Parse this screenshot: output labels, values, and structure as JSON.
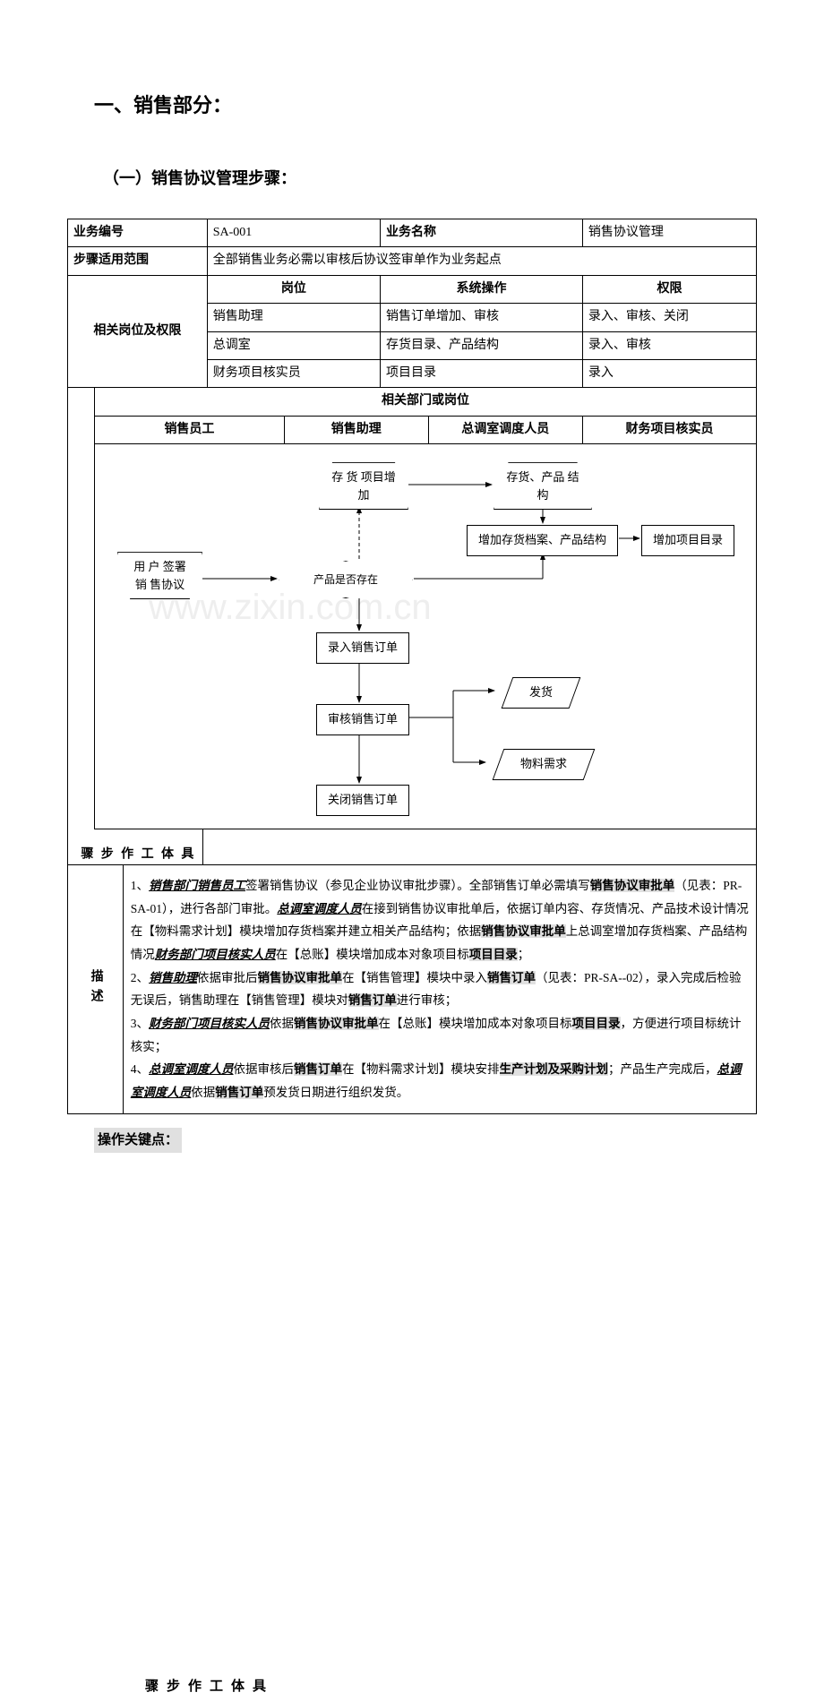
{
  "headings": {
    "h1": "一、销售部分：",
    "h2": "（一）销售协议管理步骤："
  },
  "table_top": {
    "r1": {
      "a": "业务编号",
      "b": "SA-001",
      "c": "业务名称",
      "d": "销售协议管理"
    },
    "r2": {
      "a": "步骤适用范围",
      "b": "全部销售业务必需以审核后协议签审单作为业务起点"
    },
    "hdr": {
      "a": "岗位",
      "b": "系统操作",
      "c": "权限"
    },
    "rows": [
      {
        "pos": "销售助理",
        "op": "销售订单增加、审核",
        "perm": "录入、审核、关闭"
      },
      {
        "pos": "总调室",
        "op": "存货目录、产品结构",
        "perm": "录入、审核"
      },
      {
        "pos": "财务项目核实员",
        "op": "项目目录",
        "perm": "录入"
      }
    ],
    "side": "相关岗位及权限"
  },
  "dept_hdr": "相关部门或岗位",
  "depts": [
    "销售员工",
    "销售助理",
    "总调室调度人员",
    "财务项目核实员"
  ],
  "steps_label": "具体工作步骤",
  "desc_label": "描述",
  "watermark": "www.zixin.com.cn",
  "flow": {
    "user_sign": "用 户 签署 销 售协议",
    "add_item": "存 货 项目增加",
    "prod_struct": "存货、产品 结 构",
    "add_archive": "增加存货档案、产品结构",
    "add_proj": "增加项目目录",
    "exists": "产品是否存在",
    "enter_order": "录入销售订单",
    "review_order": "审核销售订单",
    "close_order": "关闭销售订单",
    "ship": "发货",
    "material": "物料需求"
  },
  "desc": {
    "p1a": "1、",
    "p1b": "销售部门销售员工",
    "p1c": "签署销售协议（参见企业协议审批步骤）。全部销售订单必需填写",
    "p1d": "销售协议审批单",
    "p1e": "（见表：PR-SA-01），进行各部门审批。",
    "p1f": "总调室调度人员",
    "p1g": "在接到销售协议审批单后，依据订单内容、存货情况、产品技术设计情况在【物料需求计划】模块增加存货档案并建立相关产品结构；依据",
    "p1h": "销售协议审批单",
    "p1i": "上总调室增加存货档案、产品结构情况",
    "p1j": "财务部门项目核实人员",
    "p1k": "在【总账】模块增加成本对象项目标",
    "p1l": "项目目录",
    "p1m": "；",
    "p2a": "2、",
    "p2b": "销售助理",
    "p2c": "依据审批后",
    "p2d": "销售协议审批单",
    "p2e": "在【销售管理】模块中录入",
    "p2f": "销售订单",
    "p2g": "（见表：PR-SA--02），录入完成后检验无误后，销售助理在【销售管理】模块对",
    "p2h": "销售订单",
    "p2i": "进行审核；",
    "p3a": "3、",
    "p3b": "财务部门项目核实人员",
    "p3c": "依据",
    "p3d": "销售协议审批单",
    "p3e": "在【总账】模块增加成本对象项目标",
    "p3f": "项目目录",
    "p3g": "，方便进行项目标统计核实；",
    "p4a": "4、",
    "p4b": "总调室调度人员",
    "p4c": "依据审核后",
    "p4d": "销售订单",
    "p4e": "在【物料需求计划】模块安排",
    "p4f": "生产计划及采购计划",
    "p4g": "；产品生产完成后，",
    "p4h": "总调室调度人员",
    "p4i": "依据",
    "p4j": "销售订单",
    "p4k": "预发货日期进行组织发货。"
  },
  "keypoint": "操作关键点："
}
